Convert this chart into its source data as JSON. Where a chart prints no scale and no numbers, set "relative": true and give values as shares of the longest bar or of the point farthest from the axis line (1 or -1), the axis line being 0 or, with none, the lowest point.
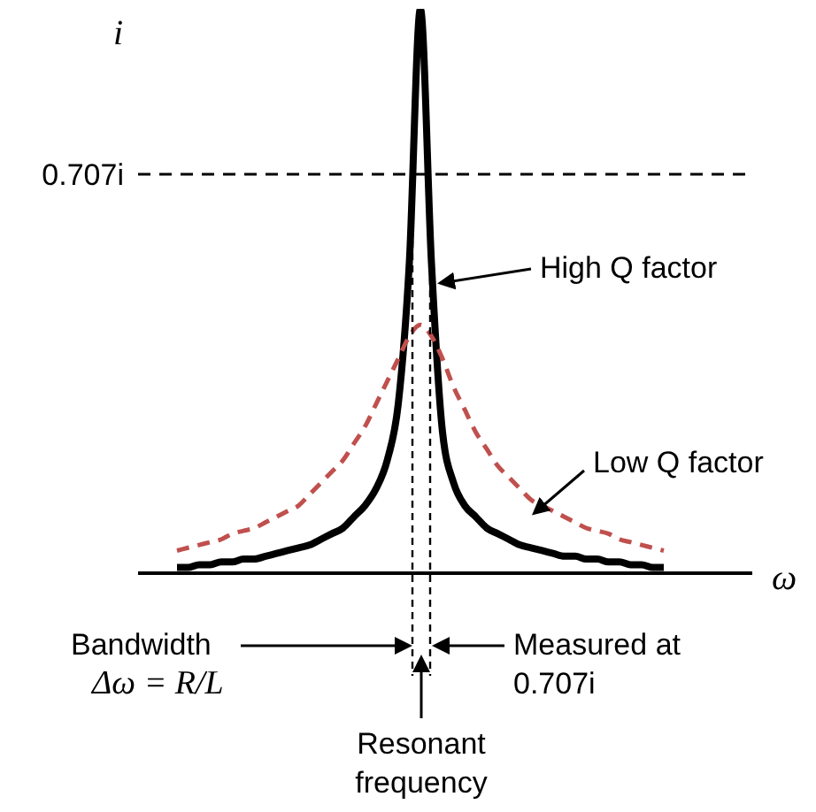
{
  "chart_data": {
    "type": "line",
    "relative": true,
    "ylabel": "i",
    "xlabel": "ω",
    "categories": [
      null,
      null,
      null,
      null,
      null,
      null,
      null,
      null,
      null,
      null,
      null,
      null,
      null,
      null,
      null,
      null,
      null,
      null,
      null,
      null,
      null,
      null,
      null,
      null,
      null,
      null,
      null,
      null,
      null,
      null,
      null,
      null,
      null,
      null,
      null,
      null,
      null,
      null,
      null,
      null,
      null,
      null,
      null,
      null,
      null
    ],
    "series": [
      {
        "color": "#000000",
        "line_style": "solid",
        "values": [
          0.01,
          0.01,
          0.015,
          0.015,
          0.02,
          0.02,
          0.025,
          0.025,
          0.03,
          0.035,
          0.04,
          0.045,
          0.05,
          0.06,
          0.07,
          0.08,
          0.1,
          0.12,
          0.15,
          0.2,
          0.3,
          0.55,
          1,
          0.55,
          0.25,
          0.16,
          0.12,
          0.1,
          0.08,
          0.07,
          0.06,
          0.05,
          0.045,
          0.04,
          0.035,
          0.03,
          0.03,
          0.025,
          0.025,
          0.02,
          0.02,
          0.015,
          0.015,
          0.01,
          0.01
        ]
      },
      {
        "color": "#c0504d",
        "line_style": "dashed",
        "values": [
          0.04,
          0.045,
          0.05,
          0.055,
          0.06,
          0.07,
          0.075,
          0.08,
          0.09,
          0.1,
          0.11,
          0.12,
          0.14,
          0.16,
          0.18,
          0.2,
          0.23,
          0.26,
          0.3,
          0.34,
          0.38,
          0.42,
          0.44,
          0.42,
          0.38,
          0.33,
          0.29,
          0.25,
          0.22,
          0.19,
          0.17,
          0.15,
          0.13,
          0.12,
          0.11,
          0.1,
          0.09,
          0.08,
          0.075,
          0.07,
          0.06,
          0.055,
          0.05,
          0.045,
          0.04
        ]
      }
    ],
    "marker": "none",
    "grid": false,
    "legend": false,
    "ref_lines": [
      {
        "axis": "y",
        "value": 0.707,
        "label": "0.707i",
        "line_style": "dashed",
        "color": "#000000"
      }
    ],
    "annotations": [
      "High Q factor",
      "Low Q factor",
      "Bandwidth",
      "Δω = R/L",
      "Measured at 0.707i",
      "Resonant frequency"
    ]
  }
}
